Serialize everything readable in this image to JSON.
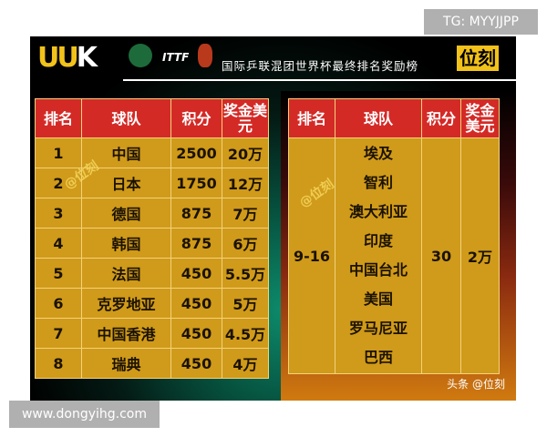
{
  "overlay": {
    "tg": "TG: MYYJJPP",
    "url": "www.dongyihg.com"
  },
  "header": {
    "logo_main": "UU",
    "logo_k": "K",
    "title": "国际乒联混团世界杯最终排名奖励榜",
    "brand": "位刻",
    "itf": "ITTF"
  },
  "columns": [
    "排名",
    "球队",
    "积分",
    "奖金美元"
  ],
  "left_rows": [
    {
      "rank": "1",
      "team": "中国",
      "points": "2500",
      "prize": "20万"
    },
    {
      "rank": "2",
      "team": "日本",
      "points": "1750",
      "prize": "12万"
    },
    {
      "rank": "3",
      "team": "德国",
      "points": "875",
      "prize": "7万"
    },
    {
      "rank": "4",
      "team": "韩国",
      "points": "875",
      "prize": "6万"
    },
    {
      "rank": "5",
      "team": "法国",
      "points": "450",
      "prize": "5.5万"
    },
    {
      "rank": "6",
      "team": "克罗地亚",
      "points": "450",
      "prize": "5万"
    },
    {
      "rank": "7",
      "team": "中国香港",
      "points": "450",
      "prize": "4.5万"
    },
    {
      "rank": "8",
      "team": "瑞典",
      "points": "450",
      "prize": "4万"
    }
  ],
  "right_group": {
    "rank": "9-16",
    "teams": [
      "埃及",
      "智利",
      "澳大利亚",
      "印度",
      "中国台北",
      "美国",
      "罗马尼亚",
      "巴西"
    ],
    "points": "30",
    "prize": "2万"
  },
  "watermark": "@位刻",
  "credit": "头条 @位刻"
}
